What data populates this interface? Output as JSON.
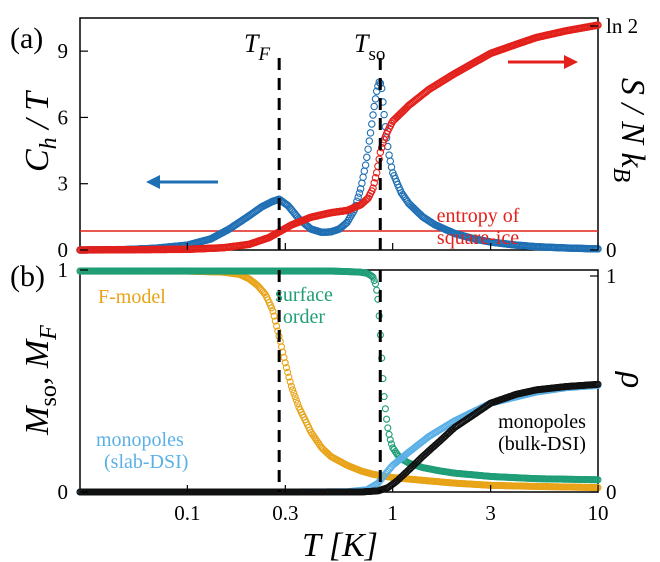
{
  "figure": {
    "panel_a_tag": "(a)",
    "panel_b_tag": "(b)",
    "vline_label_1": "T_F",
    "vline_label_2": "T_so"
  },
  "chart_data": [
    {
      "panel": "(a)",
      "type": "scatter",
      "xscale": "log",
      "xlim": [
        0.03,
        10
      ],
      "x_ticks": [
        0.1,
        0.3,
        1,
        3,
        10
      ],
      "x_tick_labels": [
        "0.1",
        "0.3",
        "1",
        "3",
        "10"
      ],
      "ylabel_left": "C_h / T",
      "ylim_left": [
        0,
        10.5
      ],
      "y_ticks_left": [
        0,
        3,
        6,
        9
      ],
      "y_tick_labels_left": [
        "0",
        "3",
        "6",
        "9"
      ],
      "ylabel_right": "S / N k_B",
      "y_ticks_right_labels": [
        "0",
        "ln 2"
      ],
      "vlines_x": [
        0.28,
        0.87
      ],
      "hline": {
        "y_frac": 0.588,
        "color": "#e3201b"
      },
      "annotations": [
        "entropy of",
        "square-ice"
      ],
      "series": [
        {
          "axis": "left",
          "color": "#1f6fb4",
          "x": [
            0.03,
            0.05,
            0.07,
            0.1,
            0.13,
            0.16,
            0.2,
            0.23,
            0.26,
            0.28,
            0.31,
            0.35,
            0.4,
            0.45,
            0.5,
            0.55,
            0.6,
            0.65,
            0.7,
            0.74,
            0.78,
            0.81,
            0.84,
            0.86,
            0.88,
            0.9,
            0.93,
            0.96,
            1.0,
            1.1,
            1.2,
            1.4,
            1.6,
            2.0,
            2.5,
            3.0,
            4.0,
            5.0,
            7.0,
            10.0
          ],
          "values": [
            0.0,
            0.02,
            0.08,
            0.22,
            0.5,
            0.95,
            1.55,
            1.95,
            2.2,
            2.3,
            2.0,
            1.4,
            0.95,
            0.8,
            0.82,
            0.95,
            1.25,
            1.8,
            2.8,
            3.9,
            5.3,
            6.4,
            7.3,
            7.6,
            7.5,
            6.5,
            5.2,
            4.3,
            3.5,
            2.6,
            2.1,
            1.5,
            1.15,
            0.75,
            0.5,
            0.36,
            0.22,
            0.15,
            0.09,
            0.05
          ]
        },
        {
          "axis": "right",
          "color": "#e3201b",
          "x": [
            0.03,
            0.1,
            0.15,
            0.2,
            0.25,
            0.28,
            0.32,
            0.4,
            0.5,
            0.6,
            0.7,
            0.76,
            0.8,
            0.84,
            0.87,
            0.9,
            0.95,
            1.0,
            1.2,
            1.5,
            2.0,
            3.0,
            4.0,
            5.0,
            7.0,
            10.0
          ],
          "values": [
            0.0,
            0.003,
            0.01,
            0.025,
            0.055,
            0.08,
            0.11,
            0.145,
            0.165,
            0.175,
            0.2,
            0.23,
            0.27,
            0.35,
            0.43,
            0.48,
            0.53,
            0.57,
            0.64,
            0.71,
            0.78,
            0.87,
            0.91,
            0.94,
            0.97,
            0.995
          ]
        }
      ]
    },
    {
      "panel": "(b)",
      "type": "scatter",
      "xscale": "log",
      "xlim": [
        0.03,
        10
      ],
      "x_ticks": [
        0.1,
        0.3,
        1,
        3,
        10
      ],
      "x_tick_labels": [
        "0.1",
        "0.3",
        "1",
        "3",
        "10"
      ],
      "xlabel": "T [K]",
      "ylabel_left": "M_so, M_F",
      "ylim_left": [
        0,
        1
      ],
      "y_ticks_left": [
        0,
        1
      ],
      "y_tick_labels_left": [
        "0",
        "1"
      ],
      "ylabel_right": "ρ",
      "y_ticks_right_labels": [
        "0",
        "1"
      ],
      "vlines_x": [
        0.28,
        0.87
      ],
      "series": [
        {
          "name": "F-model",
          "color": "#e8a317",
          "x": [
            0.03,
            0.1,
            0.15,
            0.18,
            0.2,
            0.22,
            0.24,
            0.26,
            0.28,
            0.3,
            0.32,
            0.35,
            0.4,
            0.45,
            0.5,
            0.6,
            0.7,
            0.8,
            1.0,
            1.5,
            2.0,
            3.0,
            5.0,
            10.0
          ],
          "values": [
            0.995,
            0.995,
            0.99,
            0.98,
            0.96,
            0.93,
            0.89,
            0.82,
            0.7,
            0.58,
            0.48,
            0.38,
            0.27,
            0.2,
            0.16,
            0.12,
            0.095,
            0.08,
            0.065,
            0.05,
            0.04,
            0.03,
            0.025,
            0.02
          ]
        },
        {
          "name": "surface order",
          "color": "#1f9e77",
          "x": [
            0.03,
            0.3,
            0.5,
            0.6,
            0.7,
            0.75,
            0.8,
            0.83,
            0.85,
            0.87,
            0.89,
            0.91,
            0.93,
            0.95,
            0.97,
            1.0,
            1.05,
            1.1,
            1.2,
            1.4,
            1.7,
            2.0,
            3.0,
            5.0,
            10.0
          ],
          "values": [
            0.995,
            0.995,
            0.995,
            0.993,
            0.99,
            0.985,
            0.97,
            0.93,
            0.86,
            0.72,
            0.55,
            0.42,
            0.34,
            0.28,
            0.24,
            0.2,
            0.17,
            0.15,
            0.13,
            0.11,
            0.095,
            0.085,
            0.07,
            0.06,
            0.055
          ]
        },
        {
          "name": "monopoles (slab-DSI)",
          "color": "#5bb0e6",
          "x": [
            0.03,
            0.3,
            0.6,
            0.75,
            0.85,
            0.9,
            1.0,
            1.2,
            1.5,
            2.0,
            3.0,
            5.0,
            7.0,
            10.0
          ],
          "values": [
            0.0,
            0.0,
            0.001,
            0.01,
            0.04,
            0.07,
            0.12,
            0.18,
            0.25,
            0.32,
            0.4,
            0.45,
            0.47,
            0.48
          ]
        },
        {
          "name": "monopoles (bulk-DSI)",
          "color": "#111111",
          "x": [
            0.03,
            0.7,
            0.85,
            0.95,
            1.05,
            1.2,
            1.4,
            1.7,
            2.0,
            2.5,
            3.0,
            4.0,
            5.0,
            7.0,
            10.0
          ],
          "values": [
            0.0,
            0.0,
            0.005,
            0.02,
            0.05,
            0.1,
            0.16,
            0.23,
            0.29,
            0.35,
            0.4,
            0.44,
            0.46,
            0.475,
            0.485
          ]
        }
      ],
      "annotations": [
        "F-model",
        "surface",
        "order",
        "monopoles",
        "(slab-DSI)",
        "monopoles",
        "(bulk-DSI)"
      ]
    }
  ]
}
